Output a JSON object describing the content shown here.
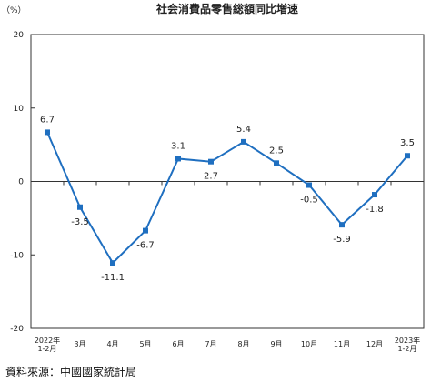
{
  "chart_data": {
    "type": "line",
    "title": "社会消費品零售総額同比増速",
    "ylabel": "（%）",
    "xlabel": "",
    "ylim": [
      -20,
      20
    ],
    "yticks": [
      20,
      10,
      0,
      -10,
      -20
    ],
    "grid": false,
    "categories": [
      [
        "2022年",
        "1-2月"
      ],
      [
        "3月"
      ],
      [
        "4月"
      ],
      [
        "5月"
      ],
      [
        "6月"
      ],
      [
        "7月"
      ],
      [
        "8月"
      ],
      [
        "9月"
      ],
      [
        "10月"
      ],
      [
        "11月"
      ],
      [
        "12月"
      ],
      [
        "2023年",
        "1-2月"
      ]
    ],
    "series": [
      {
        "values": [
          6.7,
          -3.5,
          -11.1,
          -6.7,
          3.1,
          2.7,
          5.4,
          2.5,
          -0.5,
          -5.9,
          -1.8,
          3.5
        ],
        "labels": [
          "6.7",
          "-3.5",
          "-11.1",
          "-6.7",
          "3.1",
          "2.7",
          "5.4",
          "2.5",
          "-0.5",
          "-5.9",
          "-1.8",
          "3.5"
        ],
        "color": "#1f6fc0"
      }
    ]
  },
  "source": "資料來源：中國國家統計局"
}
